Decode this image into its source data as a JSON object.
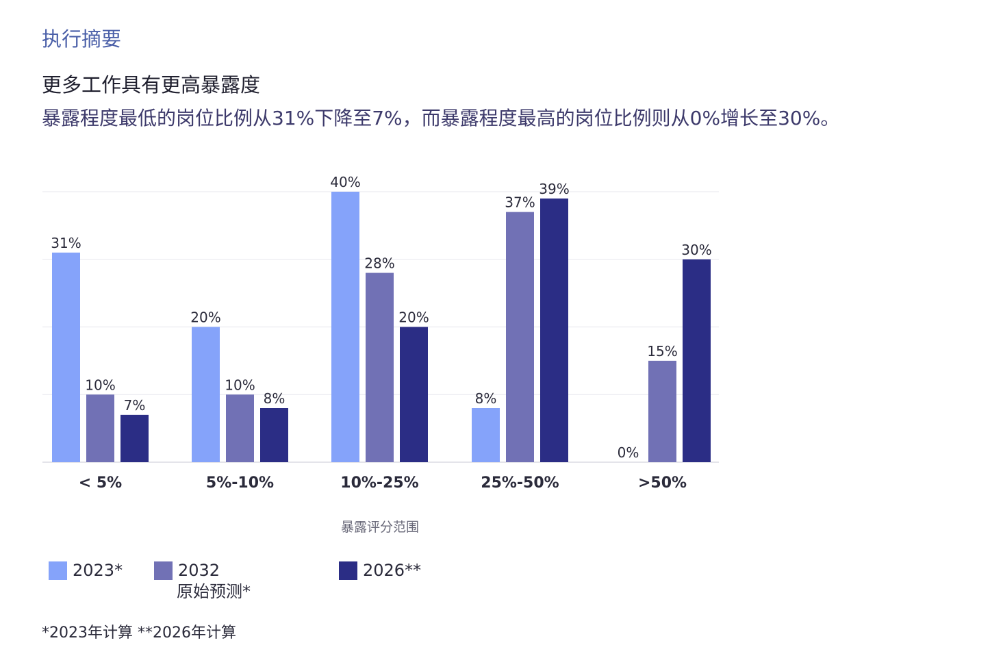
{
  "header": {
    "section_label": "执行摘要",
    "headline": "更多工作具有更高暴露度",
    "subheadline": "暴露程度最低的岗位比例从31%下降至7%，而暴露程度最高的岗位比例则从0%增长至30%。"
  },
  "chart_data": {
    "type": "bar",
    "categories": [
      "< 5%",
      "5%-10%",
      "10%-25%",
      "25%-50%",
      ">50%"
    ],
    "series": [
      {
        "name": "2023*",
        "color": "#85a3fa",
        "values": [
          31,
          20,
          40,
          8,
          0
        ],
        "labels": [
          "31%",
          "20%",
          "40%",
          "8%",
          "0%"
        ]
      },
      {
        "name": "2032 原始预测*",
        "color": "#7171b5",
        "values": [
          10,
          10,
          28,
          37,
          15
        ],
        "labels": [
          "10%",
          "10%",
          "28%",
          "37%",
          "15%"
        ]
      },
      {
        "name": "2026**",
        "color": "#2b2d85",
        "values": [
          7,
          8,
          20,
          39,
          30
        ],
        "labels": [
          "7%",
          "8%",
          "20%",
          "39%",
          "30%"
        ]
      }
    ],
    "xlabel": "暴露评分范围",
    "ylabel": "",
    "ylim": [
      0,
      40
    ],
    "grid": true
  },
  "legend": {
    "items": [
      {
        "line1": "2023*",
        "line2": "",
        "color": "#85a3fa"
      },
      {
        "line1": "2032",
        "line2": "原始预测*",
        "color": "#7171b5"
      },
      {
        "line1": "2026**",
        "line2": "",
        "color": "#2b2d85"
      }
    ]
  },
  "footnote": "*2023年计算 **2026年计算"
}
